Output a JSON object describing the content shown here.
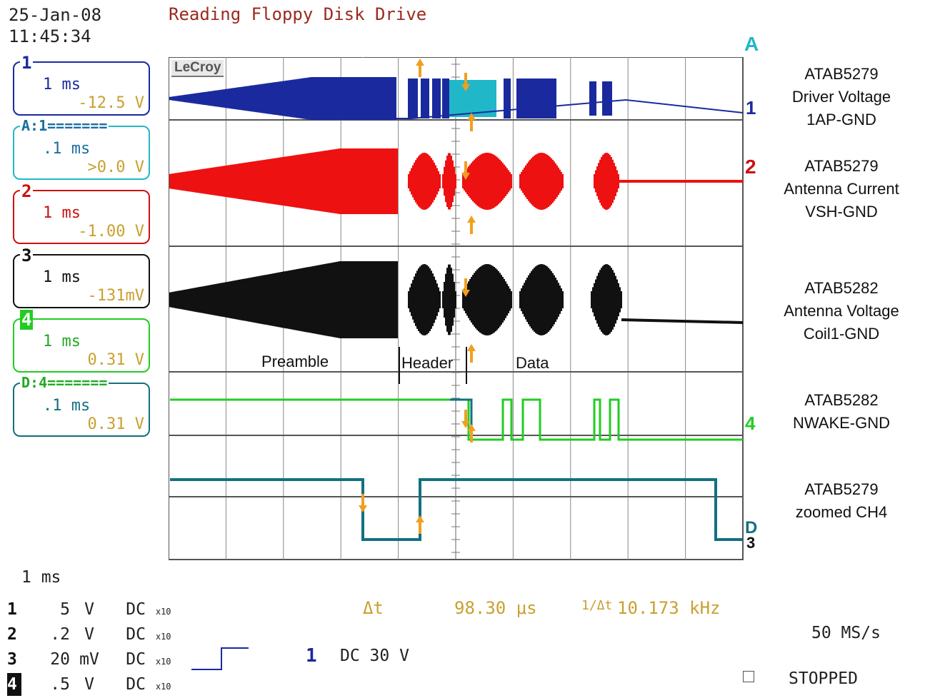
{
  "header": {
    "date": "25-Jan-08",
    "time": "11:45:34",
    "title": "Reading Floppy Disk Drive"
  },
  "brand": "LeCroy",
  "channels": [
    {
      "label": "1",
      "timebase": "1 ms",
      "offset": "-12.5 V",
      "color": "#1a2a9e"
    },
    {
      "label": "A:1=======",
      "timebase": ".1 ms",
      "offset": ">0.0 V",
      "color": "#20b8c8"
    },
    {
      "label": "2",
      "timebase": "1 ms",
      "offset": "-1.00 V",
      "color": "#cc1111"
    },
    {
      "label": "3",
      "timebase": "1 ms",
      "offset": "-131mV",
      "color": "#111111"
    },
    {
      "label": "4",
      "timebase": "1 ms",
      "offset": "0.31 V",
      "color": "#22cc22"
    },
    {
      "label": "D:4=======",
      "timebase": ".1 ms",
      "offset": "0.31 V",
      "color": "#127080"
    }
  ],
  "signal_labels": [
    {
      "lines": [
        "ATAB5279",
        "Driver Voltage",
        "1AP-GND"
      ]
    },
    {
      "lines": [
        "ATAB5279",
        "Antenna Current",
        "VSH-GND"
      ]
    },
    {
      "lines": [
        "ATAB5282",
        "Antenna Voltage",
        "Coil1-GND"
      ]
    },
    {
      "lines": [
        "ATAB5282",
        "NWAKE-GND"
      ]
    },
    {
      "lines": [
        "ATAB5279",
        "zoomed CH4"
      ]
    }
  ],
  "annotations": {
    "preamble": "Preamble",
    "header": "Header",
    "data": "Data"
  },
  "trace_markers": {
    "ch1": "1",
    "a": "A",
    "ch2": "2",
    "ch4": "4",
    "d": "D",
    "ch3": "3"
  },
  "bottom": {
    "timebase": "1 ms",
    "settings": [
      {
        "ch": "1",
        "scale": "5",
        "unit": "V",
        "coupling": "DC",
        "probe": "x10"
      },
      {
        "ch": "2",
        "scale": ".2",
        "unit": "V",
        "coupling": "DC",
        "probe": "x10"
      },
      {
        "ch": "3",
        "scale": "20",
        "unit": "mV",
        "coupling": "DC",
        "probe": "x10"
      },
      {
        "ch": "4",
        "scale": ".5",
        "unit": "V",
        "coupling": "DC",
        "probe": "x10"
      }
    ],
    "delta_t_label": "Δt",
    "delta_t": "98.30 μs",
    "inv_label": "1/Δt",
    "frequency": "10.173 kHz",
    "trigger_channel": "1",
    "trigger_level": "DC 30 V",
    "sample_rate": "50 MS/s",
    "status": "STOPPED"
  }
}
